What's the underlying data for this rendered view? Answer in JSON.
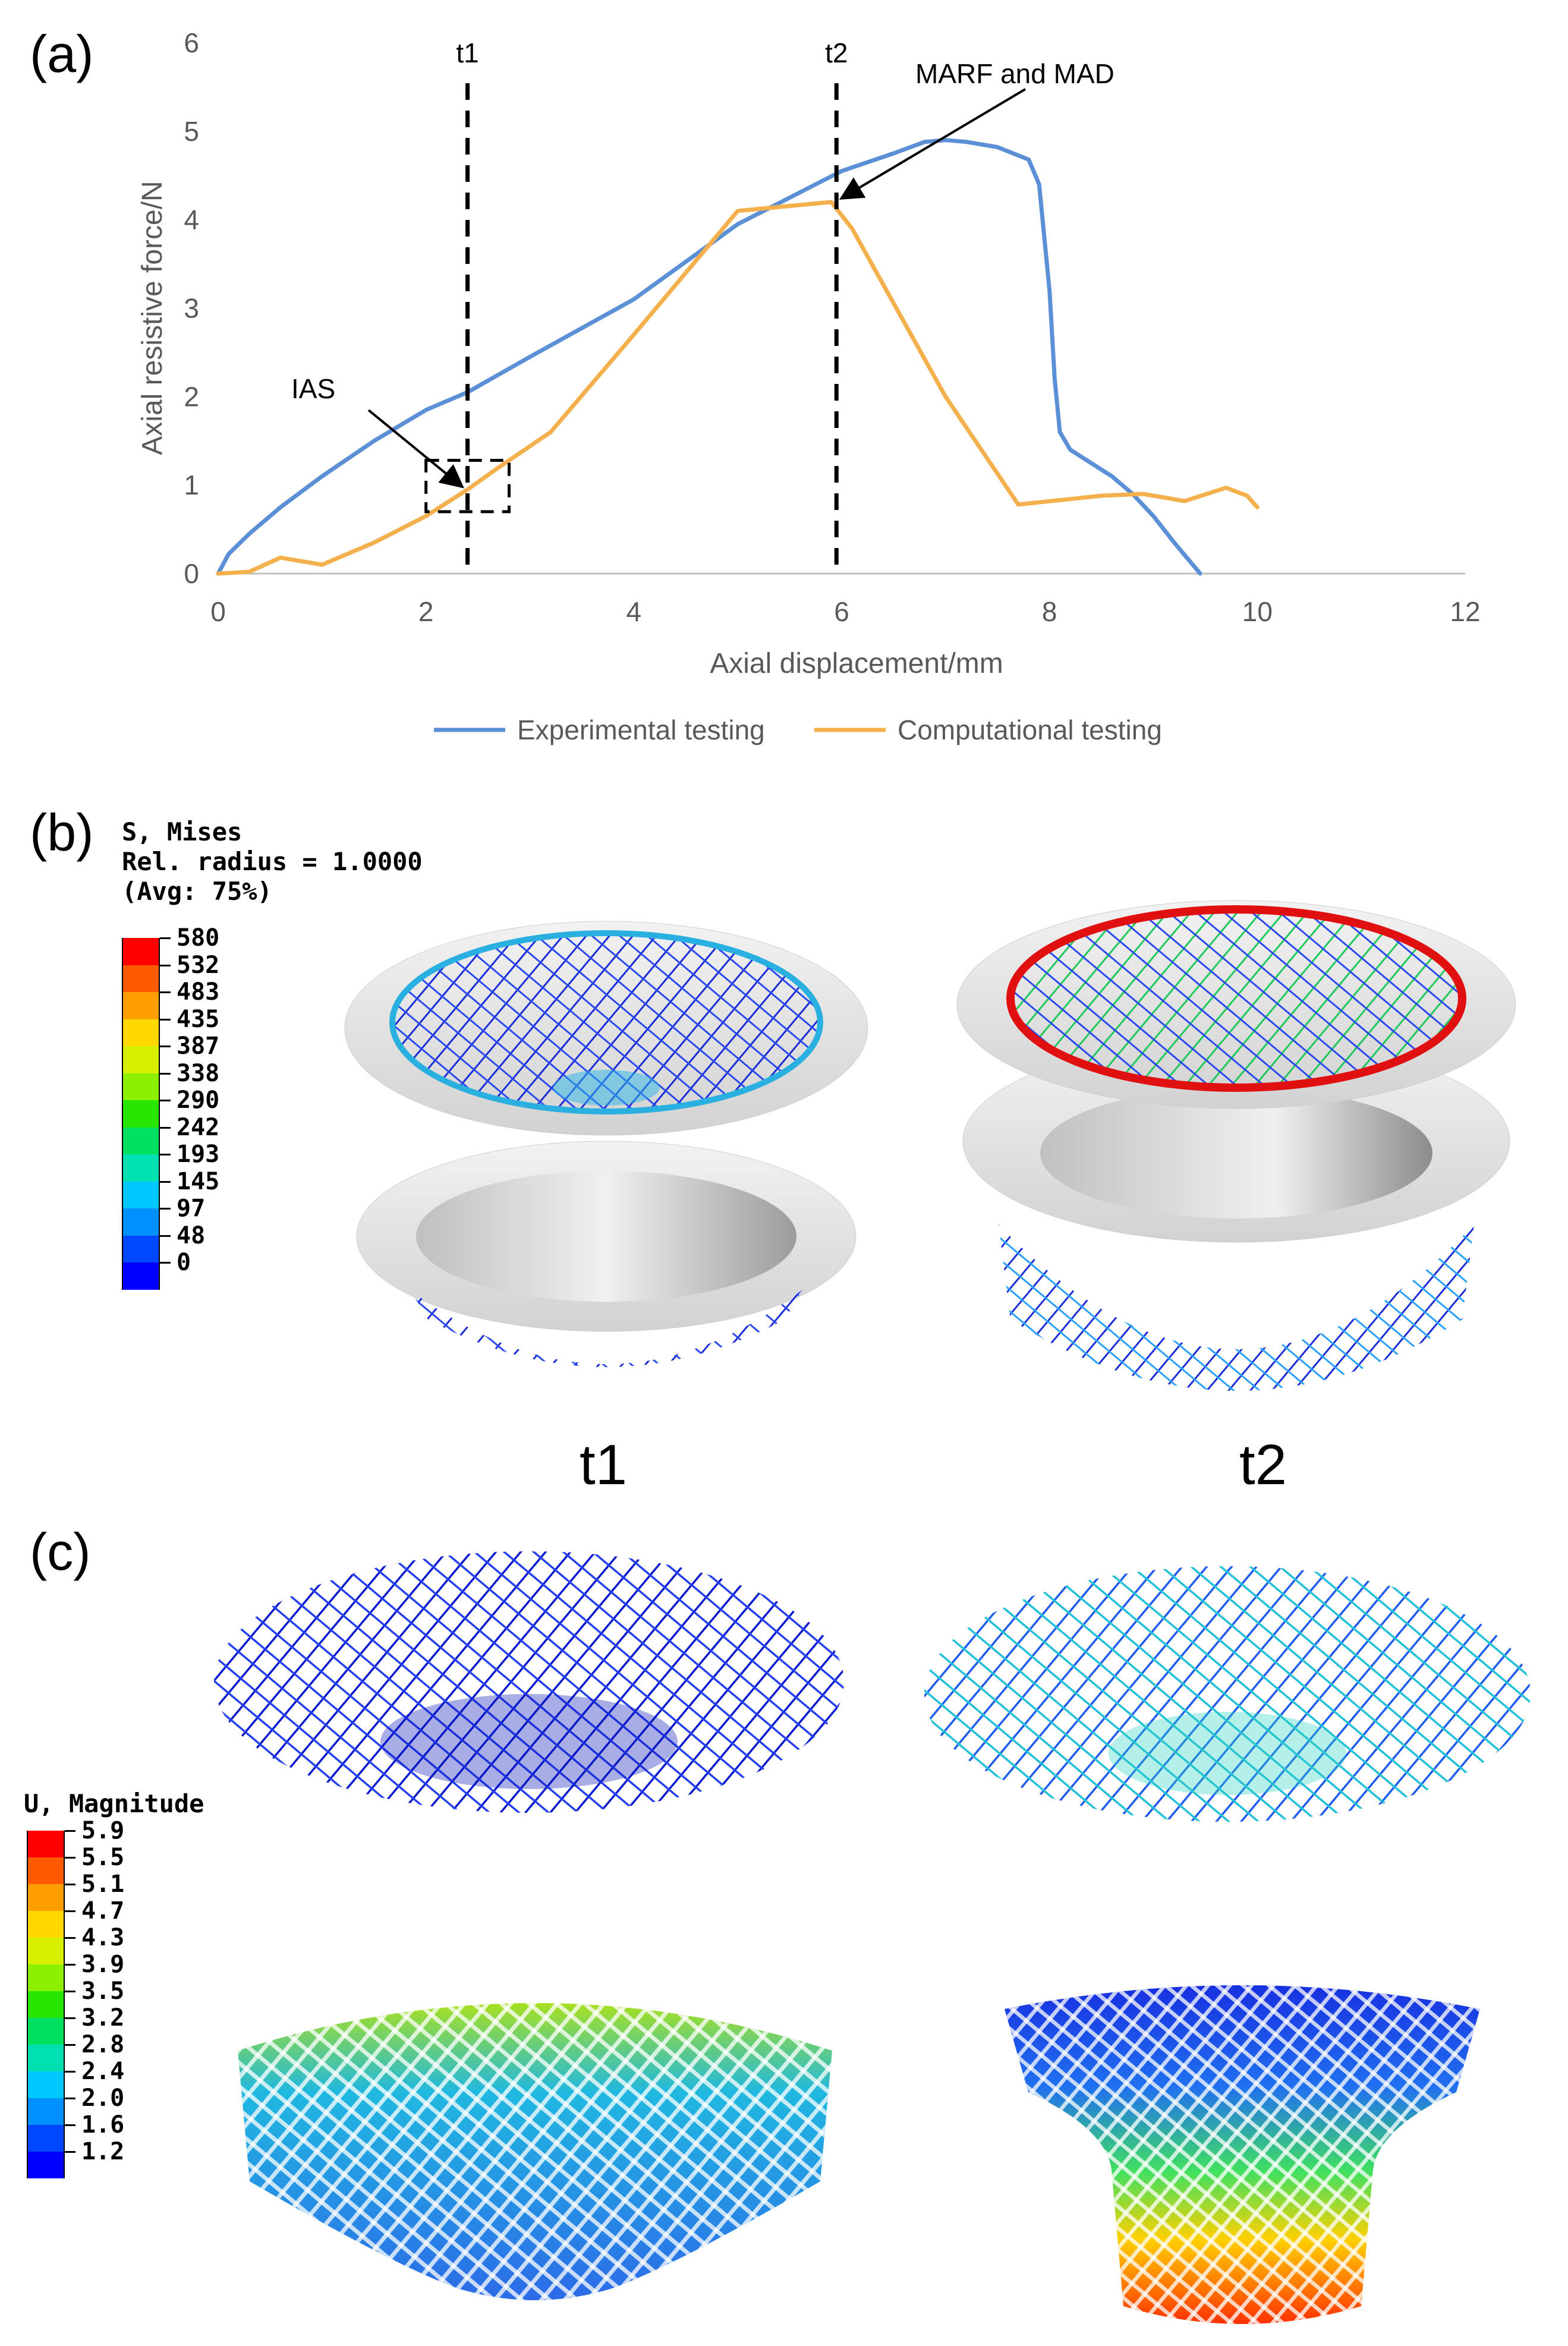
{
  "panels": {
    "a": "(a)",
    "b": "(b)",
    "c": "(c)"
  },
  "chart_data": {
    "type": "line",
    "title": "",
    "xlabel": "Axial displacement/mm",
    "ylabel": "Axial resistive force/N",
    "xlim": [
      0,
      12
    ],
    "ylim": [
      0,
      6
    ],
    "xticks": [
      0,
      2,
      4,
      6,
      8,
      10,
      12
    ],
    "yticks": [
      0,
      1,
      2,
      3,
      4,
      5,
      6
    ],
    "grid": false,
    "legend": "bottom",
    "series": [
      {
        "name": "Experimental testing",
        "color": "#5b8fd6",
        "x": [
          0,
          0.1,
          0.3,
          0.6,
          1.0,
          1.5,
          2.0,
          2.4,
          3.0,
          4.0,
          5.0,
          6.0,
          6.5,
          6.8,
          7.0,
          7.2,
          7.5,
          7.8,
          7.9,
          8.0,
          8.05,
          8.1,
          8.2,
          8.4,
          8.6,
          8.8,
          9.0,
          9.2,
          9.45
        ],
        "y": [
          0,
          0.22,
          0.45,
          0.75,
          1.1,
          1.5,
          1.85,
          2.05,
          2.45,
          3.1,
          3.95,
          4.55,
          4.75,
          4.88,
          4.9,
          4.88,
          4.82,
          4.68,
          4.4,
          3.2,
          2.2,
          1.6,
          1.4,
          1.25,
          1.1,
          0.9,
          0.65,
          0.35,
          0
        ]
      },
      {
        "name": "Computational testing",
        "color": "#f4b04c",
        "x": [
          0,
          0.3,
          0.6,
          1.0,
          1.5,
          2.0,
          2.4,
          2.7,
          3.2,
          4.0,
          5.0,
          5.9,
          6.1,
          7.0,
          7.7,
          8.5,
          8.9,
          9.3,
          9.7,
          9.9,
          10.0
        ],
        "y": [
          0,
          0.02,
          0.18,
          0.1,
          0.35,
          0.65,
          0.95,
          1.2,
          1.6,
          2.7,
          4.1,
          4.2,
          3.9,
          2.0,
          0.78,
          0.88,
          0.9,
          0.82,
          0.97,
          0.88,
          0.75
        ]
      }
    ],
    "annotations": {
      "t1": {
        "label": "t1",
        "x": 2.4
      },
      "t2": {
        "label": "t2",
        "x": 5.95
      },
      "ias": "IAS",
      "marf": "MARF and MAD"
    }
  },
  "panel_b": {
    "legend_title": [
      "S, Mises",
      "Rel. radius = 1.0000",
      "(Avg: 75%)"
    ],
    "levels": [
      "580",
      "532",
      "483",
      "435",
      "387",
      "338",
      "290",
      "242",
      "193",
      "145",
      "97",
      "48",
      "0"
    ],
    "colors": [
      "#ff0000",
      "#ff5a00",
      "#ff9e00",
      "#ffd800",
      "#d8f000",
      "#8cf000",
      "#29e600",
      "#00e060",
      "#00e0b0",
      "#00c8ff",
      "#0090ff",
      "#0048ff",
      "#0000ff"
    ],
    "t1": "t1",
    "t2": "t2"
  },
  "panel_c": {
    "legend_title": "U, Magnitude",
    "levels": [
      "5.9",
      "5.5",
      "5.1",
      "4.7",
      "4.3",
      "3.9",
      "3.5",
      "3.2",
      "2.8",
      "2.4",
      "2.0",
      "1.6",
      "1.2"
    ],
    "colors": [
      "#ff0000",
      "#ff5a00",
      "#ff9e00",
      "#ffd800",
      "#d8f000",
      "#8cf000",
      "#29e600",
      "#00e060",
      "#00e0b0",
      "#00c8ff",
      "#0090ff",
      "#0048ff",
      "#0000ff"
    ]
  }
}
